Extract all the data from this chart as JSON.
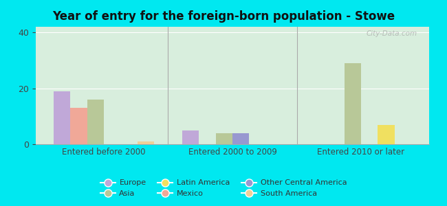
{
  "title": "Year of entry for the foreign-born population - Stowe",
  "categories": [
    "Entered before 2000",
    "Entered 2000 to 2009",
    "Entered 2010 or later"
  ],
  "series": [
    {
      "name": "Europe",
      "color": "#c0a8d8",
      "values": [
        19,
        5,
        0
      ]
    },
    {
      "name": "Mexico",
      "color": "#f0a898",
      "values": [
        13,
        0,
        0
      ]
    },
    {
      "name": "Asia",
      "color": "#b8c898",
      "values": [
        16,
        4,
        29
      ]
    },
    {
      "name": "Other Central America",
      "color": "#9898d0",
      "values": [
        0,
        4,
        0
      ]
    },
    {
      "name": "Latin America",
      "color": "#f0e060",
      "values": [
        0,
        0,
        7
      ]
    },
    {
      "name": "South America",
      "color": "#f0d098",
      "values": [
        1,
        0,
        0
      ]
    }
  ],
  "legend_order": [
    0,
    2,
    4,
    1,
    3,
    5
  ],
  "ylim": [
    0,
    42
  ],
  "yticks": [
    0,
    20,
    40
  ],
  "outer_bg": "#00e8f0",
  "plot_bg": "#d8eedd",
  "bar_width": 0.13,
  "watermark": "City-Data.com"
}
